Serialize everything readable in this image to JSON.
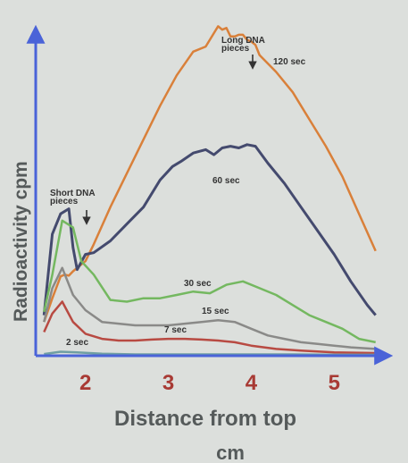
{
  "chart_data": {
    "type": "line",
    "xlabel": "Distance from top",
    "xlabel_unit": "cm",
    "ylabel": "Radioactivity  cpm",
    "xlim": [
      1.4,
      5.6
    ],
    "ylim": [
      0,
      1.0
    ],
    "x_ticks": [
      "2",
      "3",
      "4",
      "5"
    ],
    "x_tick_values": [
      2,
      3,
      4,
      5
    ],
    "y_ticks": [],
    "grid": false,
    "colors": {
      "axis": "#4a63d8",
      "ticks": "#a83a34",
      "axis_title": "#555a5a"
    },
    "annotations": [
      {
        "id": "short",
        "text_lines": [
          "Short DNA",
          "pieces"
        ],
        "x": 1.83,
        "y": 0.425
      },
      {
        "id": "long",
        "text_lines": [
          "Long DNA",
          "pieces"
        ],
        "x": 3.95,
        "y": 0.93
      }
    ],
    "series": [
      {
        "name": "120 sec",
        "color": "#d9803a",
        "x": [
          1.5,
          1.6,
          1.7,
          1.75,
          1.8,
          1.85,
          1.9,
          2.0,
          2.1,
          2.3,
          2.5,
          2.7,
          2.9,
          3.1,
          3.3,
          3.45,
          3.6,
          3.65,
          3.7,
          3.75,
          3.8,
          3.85,
          3.9,
          3.95,
          4.0,
          4.05,
          4.1,
          4.3,
          4.5,
          4.7,
          4.9,
          5.1,
          5.3,
          5.5
        ],
        "y": [
          0.1,
          0.17,
          0.235,
          0.24,
          0.237,
          0.25,
          0.26,
          0.28,
          0.33,
          0.44,
          0.54,
          0.64,
          0.74,
          0.83,
          0.9,
          0.915,
          0.975,
          0.965,
          0.97,
          0.945,
          0.945,
          0.95,
          0.95,
          0.935,
          0.93,
          0.92,
          0.89,
          0.84,
          0.78,
          0.7,
          0.62,
          0.53,
          0.42,
          0.31
        ]
      },
      {
        "name": "60 sec",
        "color": "#444a6e",
        "x": [
          1.5,
          1.6,
          1.7,
          1.8,
          1.85,
          1.9,
          2.0,
          2.1,
          2.3,
          2.5,
          2.7,
          2.9,
          3.05,
          3.15,
          3.3,
          3.45,
          3.55,
          3.65,
          3.75,
          3.85,
          3.95,
          4.05,
          4.2,
          4.4,
          4.6,
          4.8,
          5.0,
          5.2,
          5.4,
          5.5
        ],
        "y": [
          0.12,
          0.36,
          0.42,
          0.435,
          0.32,
          0.255,
          0.3,
          0.305,
          0.34,
          0.39,
          0.44,
          0.52,
          0.56,
          0.575,
          0.6,
          0.61,
          0.595,
          0.615,
          0.62,
          0.615,
          0.625,
          0.62,
          0.57,
          0.51,
          0.44,
          0.37,
          0.3,
          0.22,
          0.15,
          0.12
        ]
      },
      {
        "name": "30 sec",
        "color": "#74b860",
        "x": [
          1.5,
          1.6,
          1.72,
          1.85,
          1.95,
          2.1,
          2.3,
          2.5,
          2.7,
          2.9,
          3.1,
          3.3,
          3.5,
          3.7,
          3.9,
          4.1,
          4.3,
          4.5,
          4.7,
          4.9,
          5.1,
          5.3,
          5.5
        ],
        "y": [
          0.13,
          0.24,
          0.4,
          0.38,
          0.28,
          0.24,
          0.165,
          0.16,
          0.17,
          0.17,
          0.18,
          0.19,
          0.185,
          0.21,
          0.22,
          0.2,
          0.18,
          0.15,
          0.12,
          0.1,
          0.08,
          0.05,
          0.04
        ]
      },
      {
        "name": "15 sec",
        "color": "#8a8a88",
        "x": [
          1.5,
          1.6,
          1.72,
          1.85,
          2.0,
          2.2,
          2.4,
          2.6,
          2.8,
          3.0,
          3.2,
          3.4,
          3.6,
          3.8,
          4.0,
          4.2,
          4.4,
          4.6,
          4.8,
          5.0,
          5.2,
          5.5
        ],
        "y": [
          0.1,
          0.2,
          0.26,
          0.18,
          0.135,
          0.1,
          0.095,
          0.09,
          0.09,
          0.09,
          0.095,
          0.1,
          0.105,
          0.1,
          0.08,
          0.06,
          0.05,
          0.04,
          0.035,
          0.03,
          0.025,
          0.02
        ]
      },
      {
        "name": "7 sec",
        "color": "#b84a42",
        "x": [
          1.5,
          1.6,
          1.72,
          1.85,
          2.0,
          2.2,
          2.4,
          2.6,
          2.8,
          3.0,
          3.2,
          3.4,
          3.6,
          3.8,
          4.0,
          4.3,
          4.6,
          5.0,
          5.5
        ],
        "y": [
          0.07,
          0.125,
          0.16,
          0.1,
          0.065,
          0.05,
          0.045,
          0.045,
          0.048,
          0.05,
          0.05,
          0.048,
          0.045,
          0.04,
          0.03,
          0.02,
          0.015,
          0.01,
          0.008
        ]
      },
      {
        "name": "2 sec",
        "color": "#6f9fa3",
        "x": [
          1.5,
          1.7,
          1.9,
          2.2,
          2.6,
          3.0,
          3.5,
          4.0,
          4.5,
          5.0,
          5.5
        ],
        "y": [
          0.005,
          0.012,
          0.01,
          0.006,
          0.004,
          0.004,
          0.004,
          0.004,
          0.004,
          0.003,
          0.003
        ]
      }
    ],
    "series_labels": [
      {
        "series": "120 sec",
        "text": "120 sec"
      },
      {
        "series": "60 sec",
        "text": "60 sec"
      },
      {
        "series": "30 sec",
        "text": "30 sec"
      },
      {
        "series": "15 sec",
        "text": "15 sec"
      },
      {
        "series": "7 sec",
        "text": "7 sec"
      },
      {
        "series": "2 sec",
        "text": "2 sec"
      }
    ]
  }
}
